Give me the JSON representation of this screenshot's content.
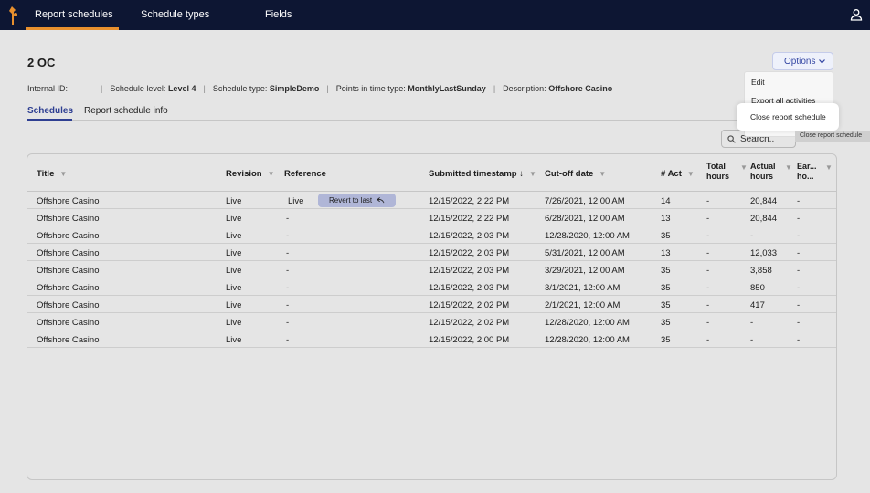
{
  "nav": {
    "tabs": [
      {
        "label": "Report schedules"
      },
      {
        "label": "Schedule types"
      },
      {
        "label": "Fields"
      }
    ]
  },
  "page": {
    "title": "2 OC",
    "meta": {
      "internal_id_label": "Internal ID:",
      "schedule_level_label": "Schedule level:",
      "schedule_level_value": "Level 4",
      "schedule_type_label": "Schedule type:",
      "schedule_type_value": "SimpleDemo",
      "points_label": "Points in time type:",
      "points_value": "MonthlyLastSunday",
      "description_label": "Description:",
      "description_value": "Offshore Casino"
    },
    "subtabs": [
      {
        "label": "Schedules"
      },
      {
        "label": "Report schedule info"
      }
    ]
  },
  "options": {
    "label": "Options",
    "items": [
      "Edit",
      "Export all activities",
      "Close report schedule"
    ],
    "tooltip": "Close report schedule"
  },
  "search": {
    "placeholder": "Search.."
  },
  "table": {
    "headers": {
      "title": "Title",
      "revision": "Revision",
      "reference": "Reference",
      "submitted": "Submitted timestamp",
      "submitted_sort": "↓",
      "cutoff": "Cut-off date",
      "act": "# Act",
      "total_1": "Total",
      "total_2": "hours",
      "actual_1": "Actual",
      "actual_2": "hours",
      "ear_1": "Ear...",
      "ear_2": "ho..."
    },
    "revert_label": "Revert to last",
    "rows": [
      {
        "title": "Offshore Casino",
        "revision": "Live",
        "reference": "Live",
        "submitted": "12/15/2022, 2:22 PM",
        "cutoff": "7/26/2021, 12:00 AM",
        "act": "14",
        "total": "-",
        "actual": "20,844",
        "ear": "-"
      },
      {
        "title": "Offshore Casino",
        "revision": "Live",
        "reference": "-",
        "submitted": "12/15/2022, 2:22 PM",
        "cutoff": "6/28/2021, 12:00 AM",
        "act": "13",
        "total": "-",
        "actual": "20,844",
        "ear": "-"
      },
      {
        "title": "Offshore Casino",
        "revision": "Live",
        "reference": "-",
        "submitted": "12/15/2022, 2:03 PM",
        "cutoff": "12/28/2020, 12:00 AM",
        "act": "35",
        "total": "-",
        "actual": "-",
        "ear": "-"
      },
      {
        "title": "Offshore Casino",
        "revision": "Live",
        "reference": "-",
        "submitted": "12/15/2022, 2:03 PM",
        "cutoff": "5/31/2021, 12:00 AM",
        "act": "13",
        "total": "-",
        "actual": "12,033",
        "ear": "-"
      },
      {
        "title": "Offshore Casino",
        "revision": "Live",
        "reference": "-",
        "submitted": "12/15/2022, 2:03 PM",
        "cutoff": "3/29/2021, 12:00 AM",
        "act": "35",
        "total": "-",
        "actual": "3,858",
        "ear": "-"
      },
      {
        "title": "Offshore Casino",
        "revision": "Live",
        "reference": "-",
        "submitted": "12/15/2022, 2:03 PM",
        "cutoff": "3/1/2021, 12:00 AM",
        "act": "35",
        "total": "-",
        "actual": "850",
        "ear": "-"
      },
      {
        "title": "Offshore Casino",
        "revision": "Live",
        "reference": "-",
        "submitted": "12/15/2022, 2:02 PM",
        "cutoff": "2/1/2021, 12:00 AM",
        "act": "35",
        "total": "-",
        "actual": "417",
        "ear": "-"
      },
      {
        "title": "Offshore Casino",
        "revision": "Live",
        "reference": "-",
        "submitted": "12/15/2022, 2:02 PM",
        "cutoff": "12/28/2020, 12:00 AM",
        "act": "35",
        "total": "-",
        "actual": "-",
        "ear": "-"
      },
      {
        "title": "Offshore Casino",
        "revision": "Live",
        "reference": "-",
        "submitted": "12/15/2022, 2:00 PM",
        "cutoff": "12/28/2020, 12:00 AM",
        "act": "35",
        "total": "-",
        "actual": "-",
        "ear": "-"
      }
    ]
  },
  "colors": {
    "topbar": "#0d1633",
    "accent_orange": "#e8902e",
    "primary_blue": "#3447a3",
    "revert_bg": "#c4cbf0"
  },
  "icons": [
    "logo-icon",
    "user-icon",
    "search-icon",
    "chevron-down-icon",
    "undo-icon",
    "filter-icon"
  ]
}
